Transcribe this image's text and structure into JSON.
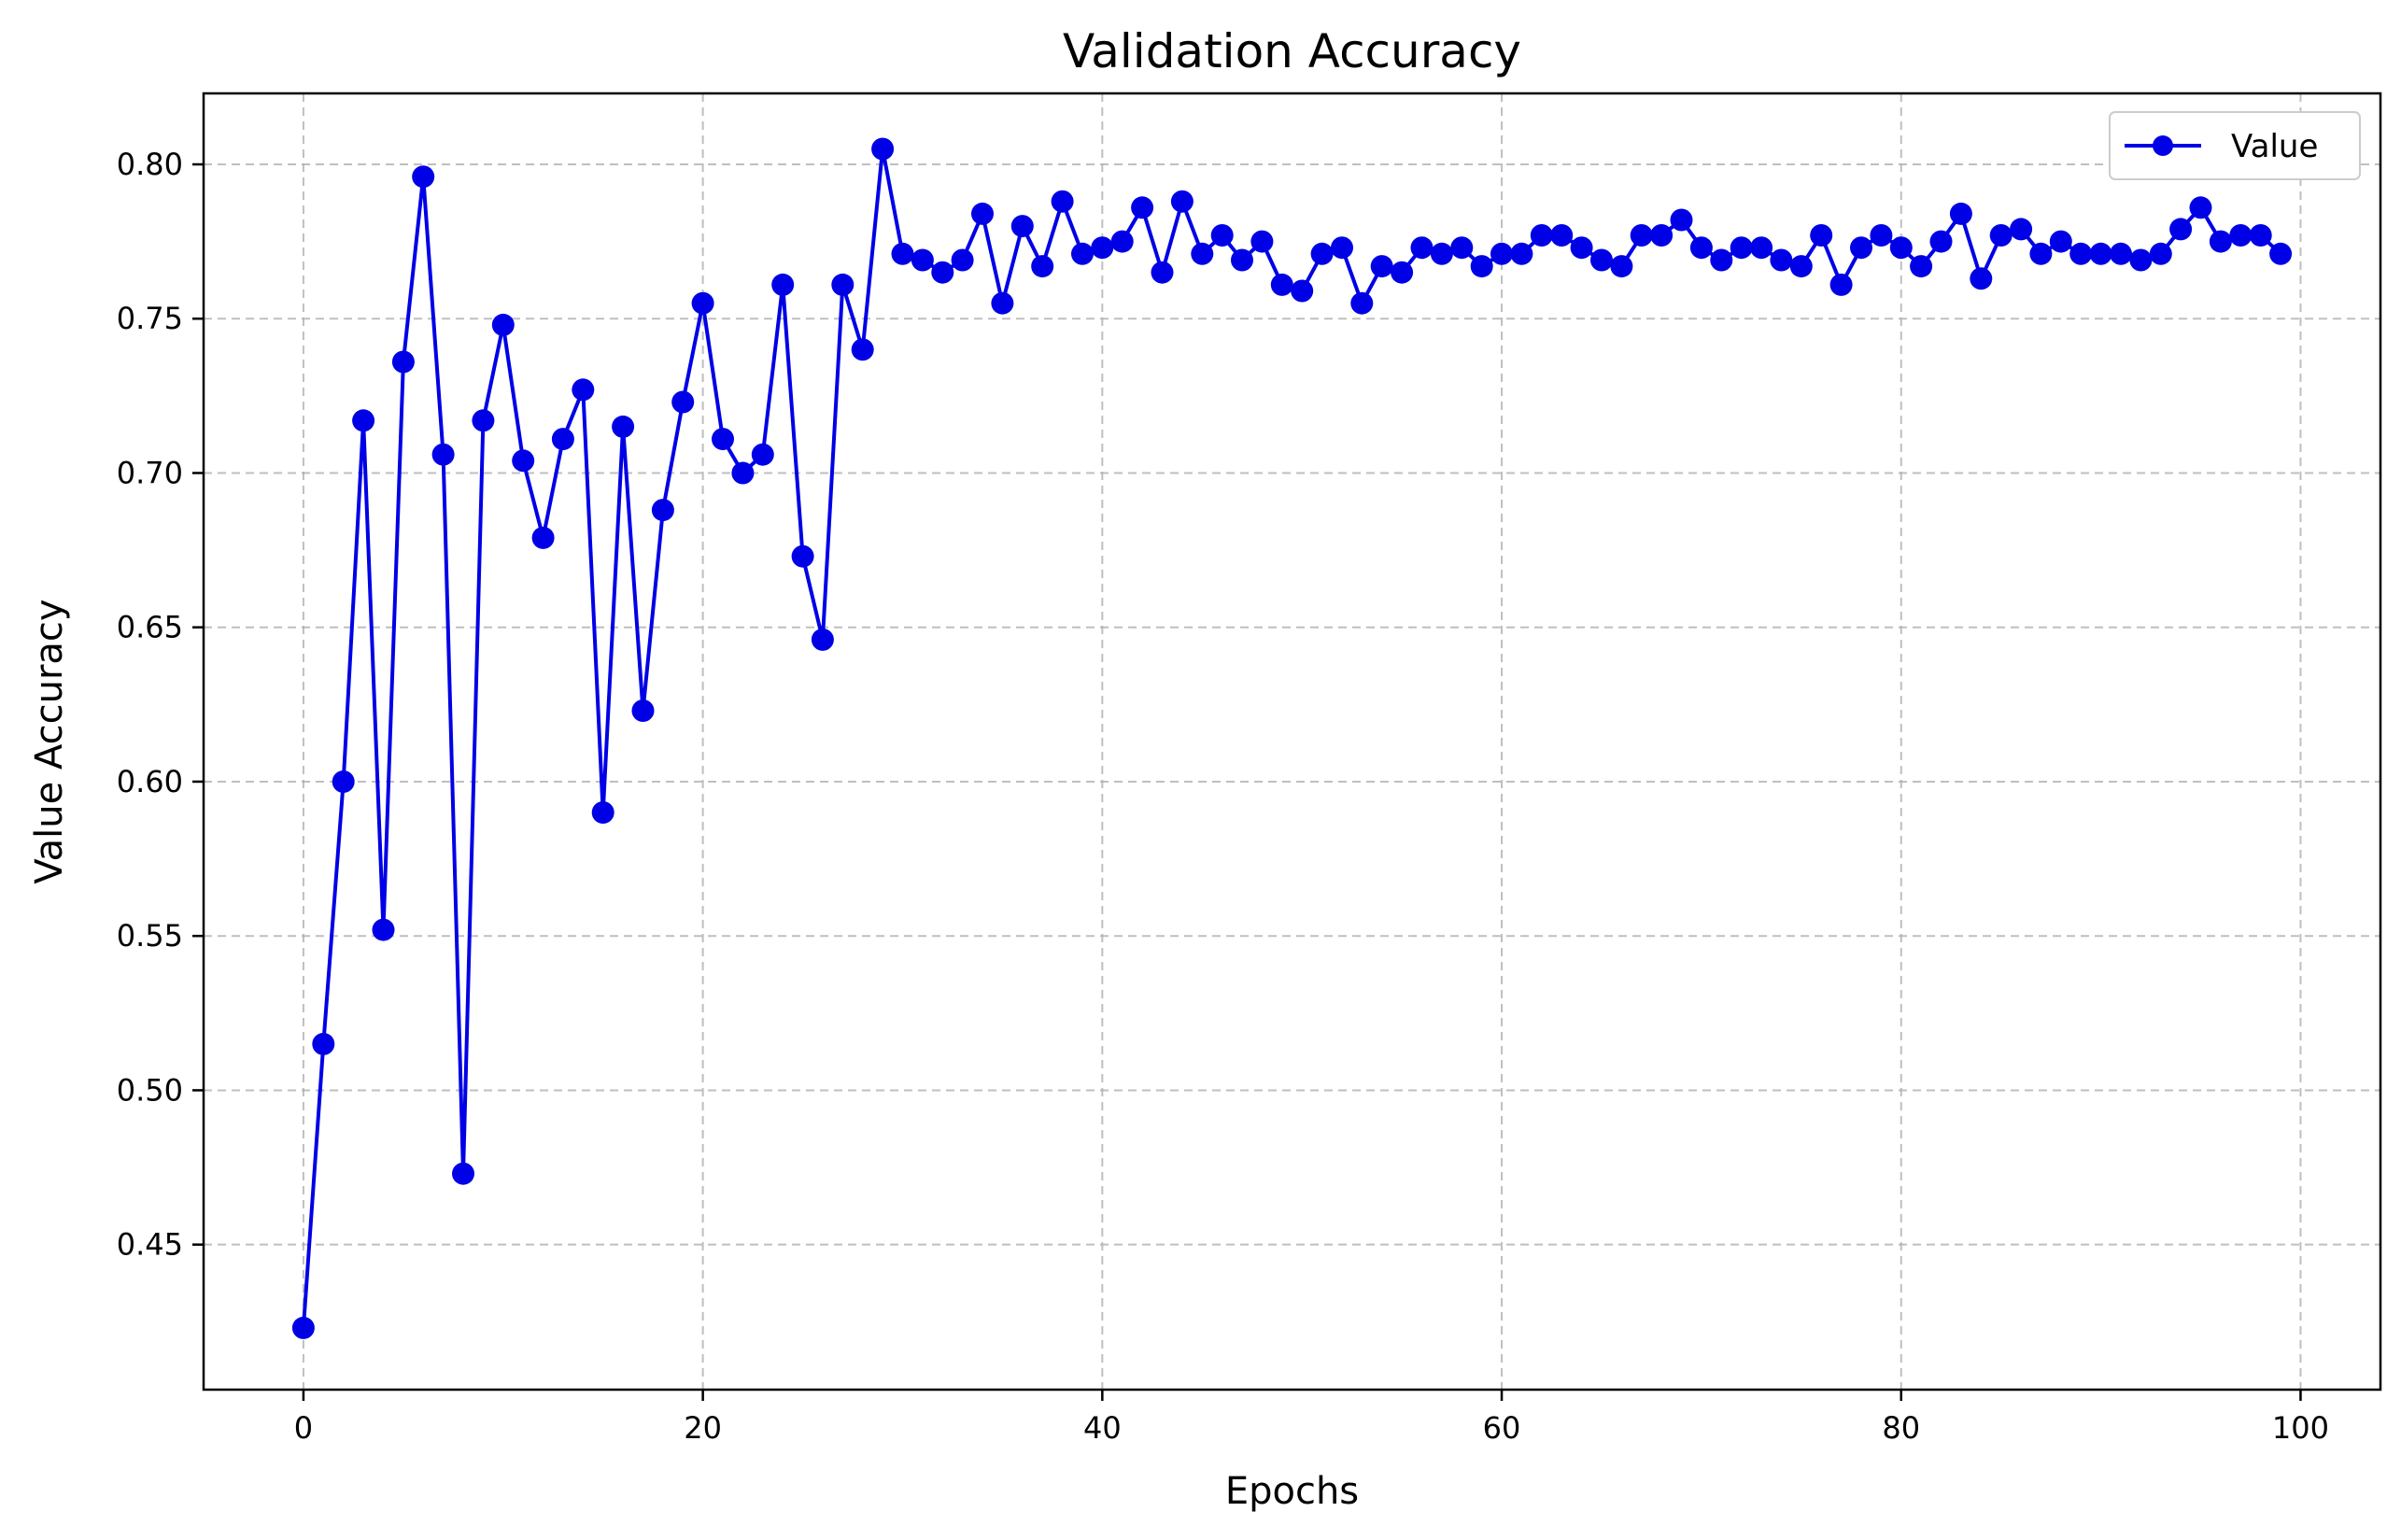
{
  "chart_data": {
    "type": "line",
    "title": "Validation Accuracy",
    "xlabel": "Epochs",
    "ylabel": "Value Accuracy",
    "xlim": [
      -5,
      104
    ],
    "ylim": [
      0.403,
      0.823
    ],
    "xticks": [
      0,
      20,
      40,
      60,
      80,
      100
    ],
    "yticks": [
      0.45,
      0.5,
      0.55,
      0.6,
      0.65,
      0.7,
      0.75,
      0.8
    ],
    "grid": true,
    "legend_position": "top-right",
    "colors": {
      "series": "#0000e6",
      "axes": "#000000",
      "grid": "#b0b0b0"
    },
    "series": [
      {
        "name": "Value",
        "x": [
          0,
          1,
          2,
          3,
          4,
          5,
          6,
          7,
          8,
          9,
          10,
          11,
          12,
          13,
          14,
          15,
          16,
          17,
          18,
          19,
          20,
          21,
          22,
          23,
          24,
          25,
          26,
          27,
          28,
          29,
          30,
          31,
          32,
          33,
          34,
          35,
          36,
          37,
          38,
          39,
          40,
          41,
          42,
          43,
          44,
          45,
          46,
          47,
          48,
          49,
          50,
          51,
          52,
          53,
          54,
          55,
          56,
          57,
          58,
          59,
          60,
          61,
          62,
          63,
          64,
          65,
          66,
          67,
          68,
          69,
          70,
          71,
          72,
          73,
          74,
          75,
          76,
          77,
          78,
          79,
          80,
          81,
          82,
          83,
          84,
          85,
          86,
          87,
          88,
          89,
          90,
          91,
          92,
          93,
          94,
          95,
          96,
          97,
          98,
          99
        ],
        "values": [
          0.423,
          0.515,
          0.6,
          0.717,
          0.552,
          0.736,
          0.796,
          0.706,
          0.473,
          0.717,
          0.748,
          0.704,
          0.679,
          0.711,
          0.727,
          0.59,
          0.715,
          0.623,
          0.688,
          0.723,
          0.755,
          0.711,
          0.7,
          0.706,
          0.761,
          0.673,
          0.646,
          0.761,
          0.74,
          0.805,
          0.771,
          0.769,
          0.765,
          0.769,
          0.784,
          0.755,
          0.78,
          0.767,
          0.788,
          0.771,
          0.773,
          0.775,
          0.786,
          0.765,
          0.788,
          0.771,
          0.777,
          0.769,
          0.775,
          0.761,
          0.759,
          0.771,
          0.773,
          0.755,
          0.767,
          0.765,
          0.773,
          0.771,
          0.773,
          0.767,
          0.771,
          0.771,
          0.777,
          0.777,
          0.773,
          0.769,
          0.767,
          0.777,
          0.777,
          0.782,
          0.773,
          0.769,
          0.773,
          0.773,
          0.769,
          0.767,
          0.777,
          0.761,
          0.773,
          0.777,
          0.773,
          0.767,
          0.775,
          0.784,
          0.763,
          0.777,
          0.779,
          0.771,
          0.775,
          0.771,
          0.771,
          0.771,
          0.769,
          0.771,
          0.779,
          0.786,
          0.775,
          0.777,
          0.777,
          0.771
        ]
      }
    ]
  }
}
